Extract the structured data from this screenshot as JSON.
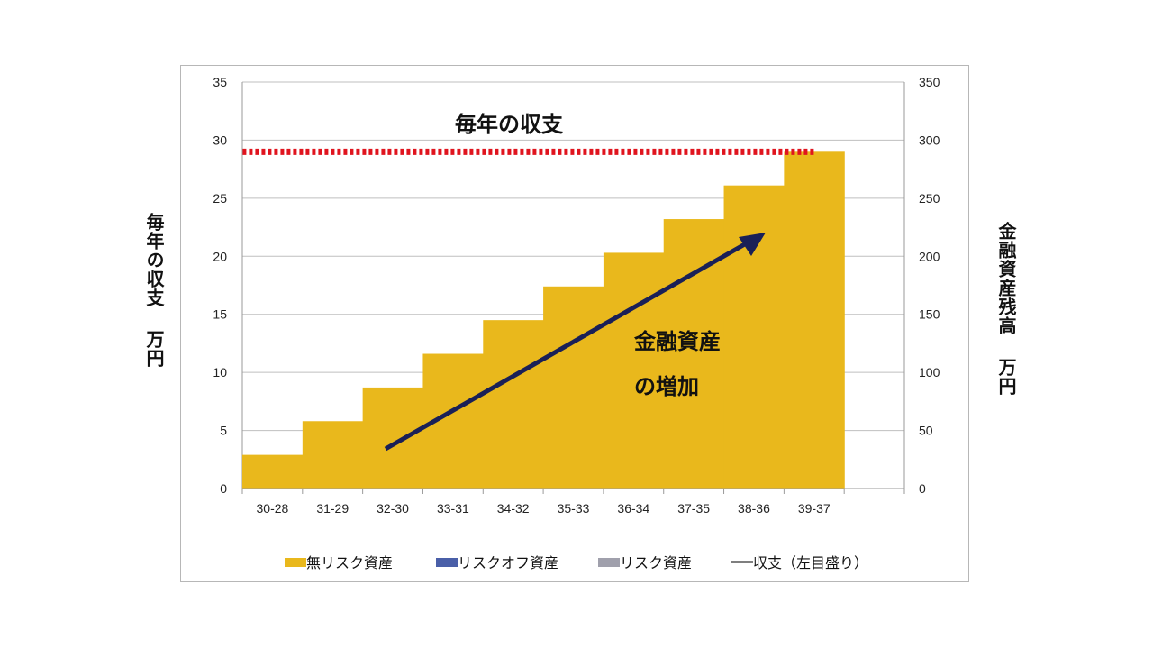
{
  "chart_data": {
    "type": "bar",
    "categories": [
      "30-28",
      "31-29",
      "32-30",
      "33-31",
      "34-32",
      "35-33",
      "36-34",
      "37-35",
      "38-36",
      "39-37"
    ],
    "series": [
      {
        "name": "無リスク資産",
        "axis": "right",
        "color": "#E9B81C",
        "values": [
          29,
          58,
          87,
          116,
          145,
          174,
          203,
          232,
          261,
          290
        ]
      },
      {
        "name": "リスクオフ資産",
        "axis": "right",
        "color": "#4A5FA8",
        "values": [
          0,
          0,
          0,
          0,
          0,
          0,
          0,
          0,
          0,
          0
        ]
      },
      {
        "name": "リスク資産",
        "axis": "right",
        "color": "#A0A0AC",
        "values": [
          0,
          0,
          0,
          0,
          0,
          0,
          0,
          0,
          0,
          0
        ]
      },
      {
        "name": "収支（左目盛り）",
        "axis": "left",
        "type": "line",
        "color": "#E0141E",
        "values": [
          29,
          29,
          29,
          29,
          29,
          29,
          29,
          29,
          29,
          29
        ]
      }
    ],
    "y_left": {
      "label": "毎年の収支 万円",
      "ylim": [
        0,
        35
      ],
      "ticks": [
        "0",
        "5",
        "10",
        "15",
        "20",
        "25",
        "30",
        "35"
      ]
    },
    "y_right": {
      "label": "金融資産残高 万円",
      "ylim": [
        0,
        350
      ],
      "ticks": [
        "0",
        "50",
        "100",
        "150",
        "200",
        "250",
        "300",
        "350"
      ]
    },
    "grid": true,
    "legend_position": "bottom",
    "annotations": {
      "line_label": "毎年の収支",
      "arrow_label_1": "金融資産",
      "arrow_label_2": "の増加"
    },
    "legend_colors": {
      "line_swatch": "#7F7F7F",
      "arrow": "#1A2057"
    }
  }
}
